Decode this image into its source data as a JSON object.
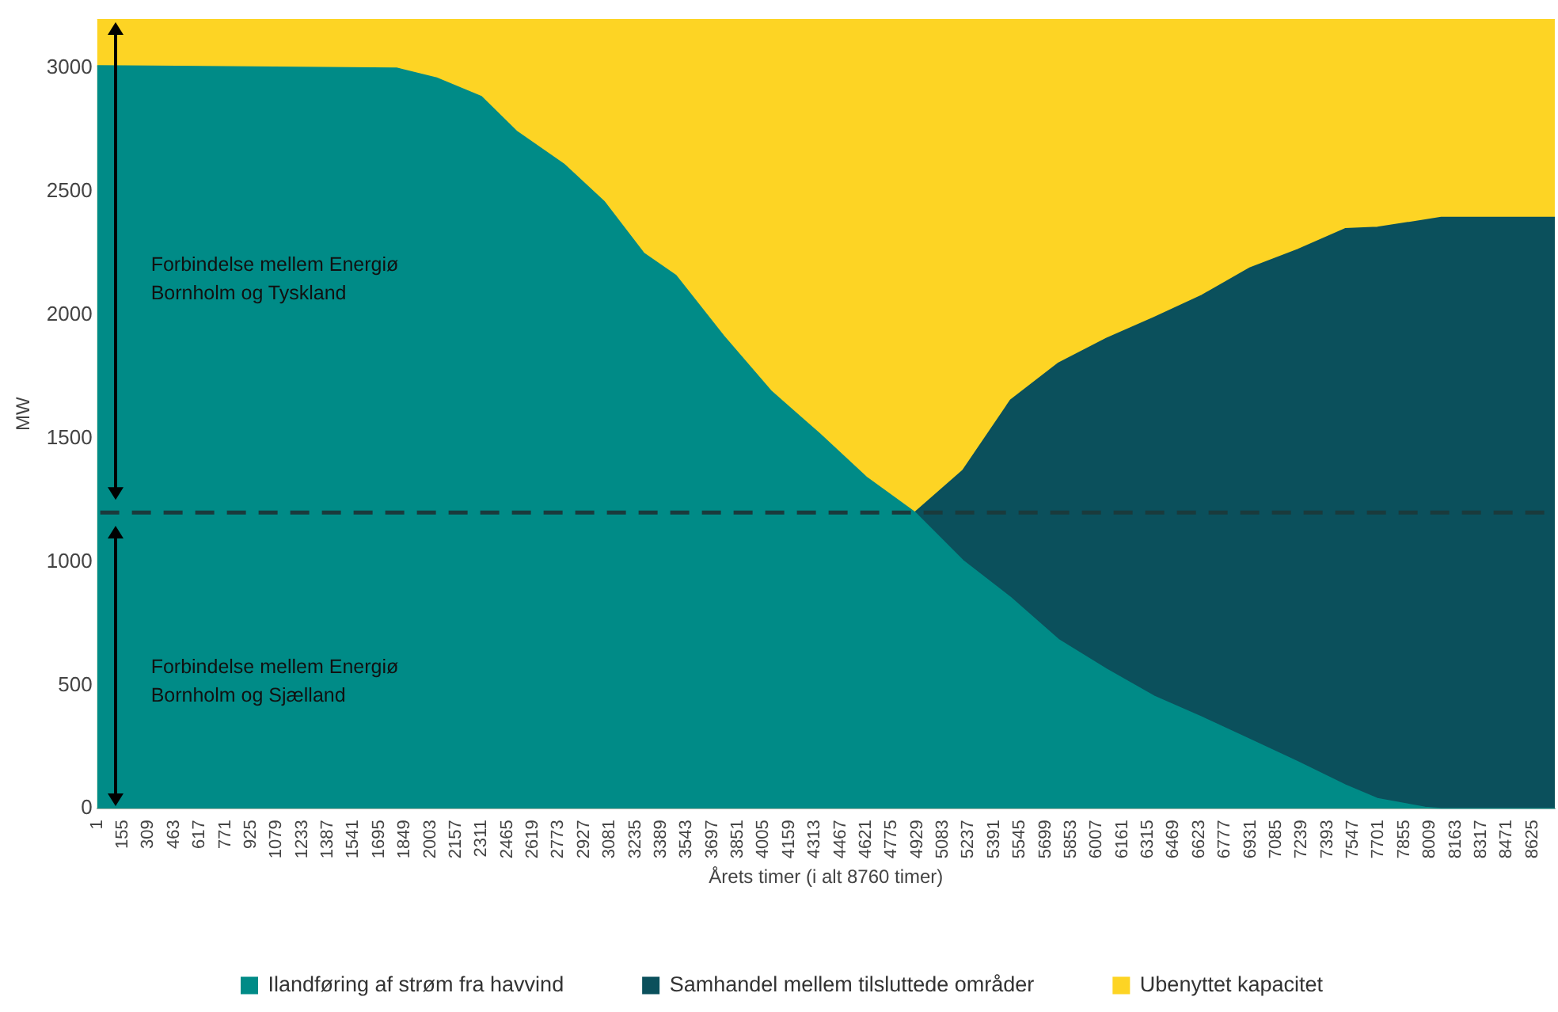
{
  "chart_data": {
    "type": "area",
    "stacked": true,
    "xlabel": "Årets timer (i alt 8760 timer)",
    "ylabel": "MW",
    "x": [
      1,
      1801,
      2041,
      2309,
      2520,
      2807,
      3047,
      3286,
      3478,
      3765,
      4053,
      4340,
      4628,
      4915,
      5203,
      5490,
      5777,
      6065,
      6352,
      6640,
      6927,
      7215,
      7502,
      7694,
      7981,
      8077,
      8760
    ],
    "series": [
      {
        "name": "Ilandføring af strøm fra havvind",
        "color": "#008b87",
        "values": [
          3010,
          3000,
          2960,
          2885,
          2745,
          2610,
          2460,
          2250,
          2160,
          1915,
          1690,
          1520,
          1340,
          1200,
          1005,
          855,
          685,
          565,
          455,
          370,
          280,
          190,
          95,
          40,
          5,
          0,
          0
        ]
      },
      {
        "name": "Samhandel mellem tilsluttede områder",
        "color": "#0b505c",
        "values": [
          null,
          null,
          null,
          null,
          null,
          null,
          null,
          null,
          null,
          null,
          null,
          null,
          null,
          0,
          365,
          800,
          1120,
          1340,
          1535,
          1710,
          1910,
          2075,
          2255,
          2315,
          2380,
          2395,
          2395
        ]
      },
      {
        "name": "Ubenyttet kapacitet",
        "color": "#fdd424",
        "values": [
          190,
          200,
          240,
          315,
          455,
          590,
          740,
          950,
          1040,
          1285,
          1510,
          1680,
          1860,
          2000,
          1830,
          1545,
          1395,
          1295,
          1210,
          1120,
          1010,
          935,
          850,
          845,
          815,
          805,
          805
        ]
      }
    ],
    "xlim": [
      1,
      8760
    ],
    "xticks": [
      1,
      155,
      309,
      463,
      617,
      771,
      925,
      1079,
      1233,
      1387,
      1541,
      1695,
      1849,
      2003,
      2157,
      2311,
      2465,
      2619,
      2773,
      2927,
      3081,
      3235,
      3389,
      3543,
      3697,
      3851,
      4005,
      4159,
      4313,
      4467,
      4621,
      4775,
      4929,
      5083,
      5237,
      5391,
      5545,
      5699,
      5853,
      6007,
      6161,
      6315,
      6469,
      6623,
      6777,
      6931,
      7085,
      7239,
      7393,
      7547,
      7701,
      7855,
      8009,
      8163,
      8317,
      8471,
      8625
    ],
    "ylim": [
      0,
      3200
    ],
    "yticks": [
      0,
      500,
      1000,
      1500,
      2000,
      2500,
      3000
    ],
    "ref_lines": [
      {
        "axis": "y",
        "value": 1200,
        "label": null,
        "color": "#1a3a3c",
        "line_style": "dashed"
      }
    ],
    "annotations": [
      "Forbindelse mellem Energiø Bornholm og Tyskland",
      "Forbindelse mellem Energiø Bornholm og Sjælland"
    ],
    "legend": "bottom",
    "grid": false
  }
}
